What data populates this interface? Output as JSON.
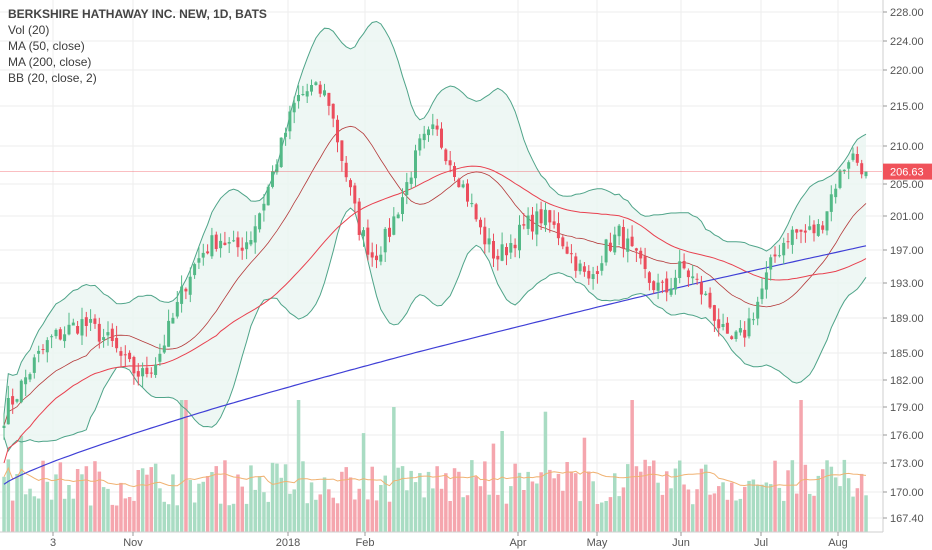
{
  "chart_data": {
    "type": "candlestick",
    "symbol_title": "BERKSHIRE HATHAWAY INC. NEW, 1D, BATS",
    "indicators": [
      "Vol (20)",
      "MA (50, close)",
      "MA (200, close)",
      "BB (20, close, 2)"
    ],
    "last_price_label": "206.63",
    "y_ticks": [
      "228.00",
      "224.00",
      "220.00",
      "215.00",
      "210.00",
      "205.00",
      "201.00",
      "197.00",
      "193.00",
      "189.00",
      "185.00",
      "182.00",
      "179.00",
      "176.00",
      "173.00",
      "170.00",
      "167.40"
    ],
    "x_ticks": [
      "3",
      "Nov",
      "2018",
      "Feb",
      "Apr",
      "May",
      "Jun",
      "Jul",
      "Aug"
    ],
    "colors": {
      "up": "#53b987",
      "down": "#eb4d5c",
      "ma50": "#e8414f",
      "ma200": "#3f3fd6",
      "bb_band": "#4fa489",
      "bb_basis": "#b43a3a",
      "bb_fill": "#eaf5f1",
      "vol_up": "#a9dcc3",
      "vol_down": "#f5a6ae",
      "vol_ma": "#f0b272",
      "last_price": "#f0525a",
      "grid": "#eeeeee",
      "axis_text": "#555555"
    },
    "price_path": [
      [
        "3",
        178.2
      ],
      [
        "3",
        181
      ],
      [
        "3",
        184
      ],
      [
        "3",
        186.5
      ],
      [
        "3",
        187.5
      ],
      [
        "Nov",
        188.5
      ],
      [
        "Nov",
        187.5
      ],
      [
        "Nov",
        186
      ],
      [
        "Nov",
        183.5
      ],
      [
        "Nov",
        182.5
      ],
      [
        "Nov",
        184.5
      ],
      [
        "Nov",
        189
      ],
      [
        "Nov",
        194
      ],
      [
        "2018",
        197
      ],
      [
        "2018",
        198.5
      ],
      [
        "2018",
        197
      ],
      [
        "2018",
        198.5
      ],
      [
        "2018",
        203.5
      ],
      [
        "2018",
        210
      ],
      [
        "2018",
        216
      ],
      [
        "2018",
        217.5
      ],
      [
        "Feb",
        216.5
      ],
      [
        "Feb",
        208
      ],
      [
        "Feb",
        200
      ],
      [
        "Feb",
        196
      ],
      [
        "Feb",
        199
      ],
      [
        "Feb",
        204
      ],
      [
        "Feb",
        210
      ],
      [
        "Feb",
        212
      ],
      [
        "Apr",
        208
      ],
      [
        "Apr",
        204
      ],
      [
        "Apr",
        199
      ],
      [
        "Apr",
        196
      ],
      [
        "Apr",
        198
      ],
      [
        "Apr",
        200
      ],
      [
        "May",
        201
      ],
      [
        "May",
        199
      ],
      [
        "May",
        196
      ],
      [
        "May",
        193
      ],
      [
        "May",
        197
      ],
      [
        "May",
        199
      ],
      [
        "Jun",
        196
      ],
      [
        "Jun",
        193
      ],
      [
        "Jun",
        192
      ],
      [
        "Jun",
        195
      ],
      [
        "Jun",
        193
      ],
      [
        "Jul",
        190
      ],
      [
        "Jul",
        186
      ],
      [
        "Jul",
        187
      ],
      [
        "Jul",
        191
      ],
      [
        "Jul",
        196
      ],
      [
        "Jul",
        199
      ],
      [
        "Jul",
        199
      ],
      [
        "Aug",
        199.5
      ],
      [
        "Aug",
        205
      ],
      [
        "Aug",
        209
      ],
      [
        "Aug",
        206.63
      ]
    ],
    "candle_count": 200,
    "ylim": [
      166.5,
      229.5
    ]
  }
}
